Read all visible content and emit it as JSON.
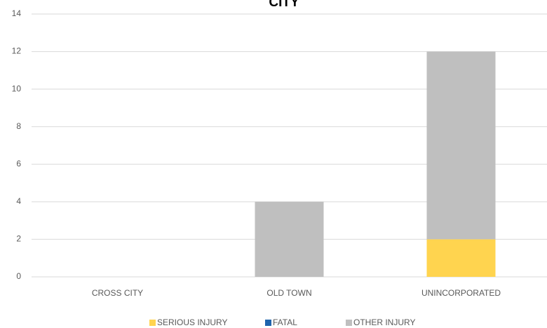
{
  "chart_data": {
    "type": "stacked_bar",
    "title": "CITY",
    "categories": [
      "CROSS CITY",
      "OLD TOWN",
      "UNINCORPORATED"
    ],
    "series": [
      {
        "name": "SERIOUS INJURY",
        "color": "#ffd44f",
        "values": [
          0,
          0,
          2
        ]
      },
      {
        "name": "FATAL",
        "color": "#1f64ad",
        "values": [
          0,
          0,
          0
        ]
      },
      {
        "name": "OTHER INJURY",
        "color": "#bfbfbf",
        "values": [
          0,
          4,
          10
        ]
      }
    ],
    "ylim": [
      0,
      14
    ],
    "yticks": [
      0,
      2,
      4,
      6,
      8,
      10,
      12,
      14
    ],
    "grid": true,
    "legend": "bottom"
  }
}
